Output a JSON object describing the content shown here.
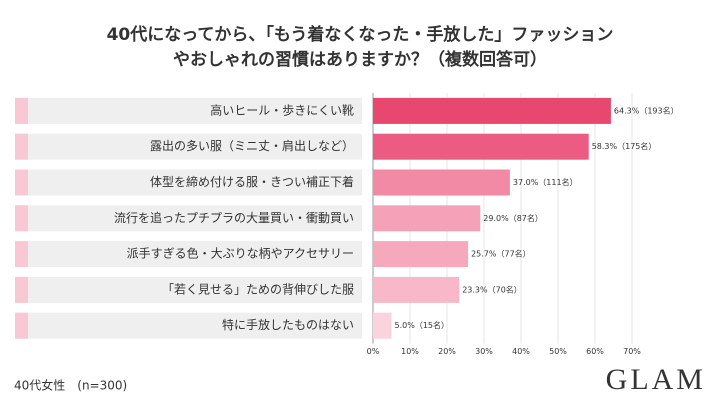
{
  "chart_data": {
    "type": "barh",
    "title": [
      "40代になってから、「もう着なくなった・手放した」ファッション",
      "やおしゃれの習慣はありますか？（複数回答可）"
    ],
    "categories": [
      "高いヒール・歩きにくい靴",
      "露出の多い服（ミニ丈・肩出しなど）",
      "体型を締め付ける服・きつい補正下着",
      "流行を追ったプチプラの大量買い・衝動買い",
      "派手すぎる色・大ぶりな柄やアクセサリー",
      "「若く見せる」ための背伸びした服",
      "特に手放したものはない"
    ],
    "values": [
      64.3,
      58.3,
      37.0,
      29.0,
      25.7,
      23.3,
      5.0
    ],
    "value_labels": [
      "64.3%（193名）",
      "58.3%（175名）",
      "37.0%（111名）",
      "29.0%（87名）",
      "25.7%（77名）",
      "23.3%（70名）",
      "5.0%（15名）"
    ],
    "colors": [
      "#e8476f",
      "#ec5c82",
      "#f28aa6",
      "#f5a2b8",
      "#f6a9bd",
      "#f8b8c9",
      "#fbd3de"
    ],
    "xlim": [
      0,
      70
    ],
    "xticks": [
      {
        "value": 0,
        "label": "0%"
      },
      {
        "value": 10,
        "label": "10%"
      },
      {
        "value": 20,
        "label": "20%"
      },
      {
        "value": 30,
        "label": "30%"
      },
      {
        "value": 40,
        "label": "40%"
      },
      {
        "value": 50,
        "label": "50%"
      },
      {
        "value": 60,
        "label": "60%"
      },
      {
        "value": 70,
        "label": "70%"
      }
    ],
    "grid": true,
    "note": "40代女性　(n=300)",
    "brand": "GLAM"
  }
}
